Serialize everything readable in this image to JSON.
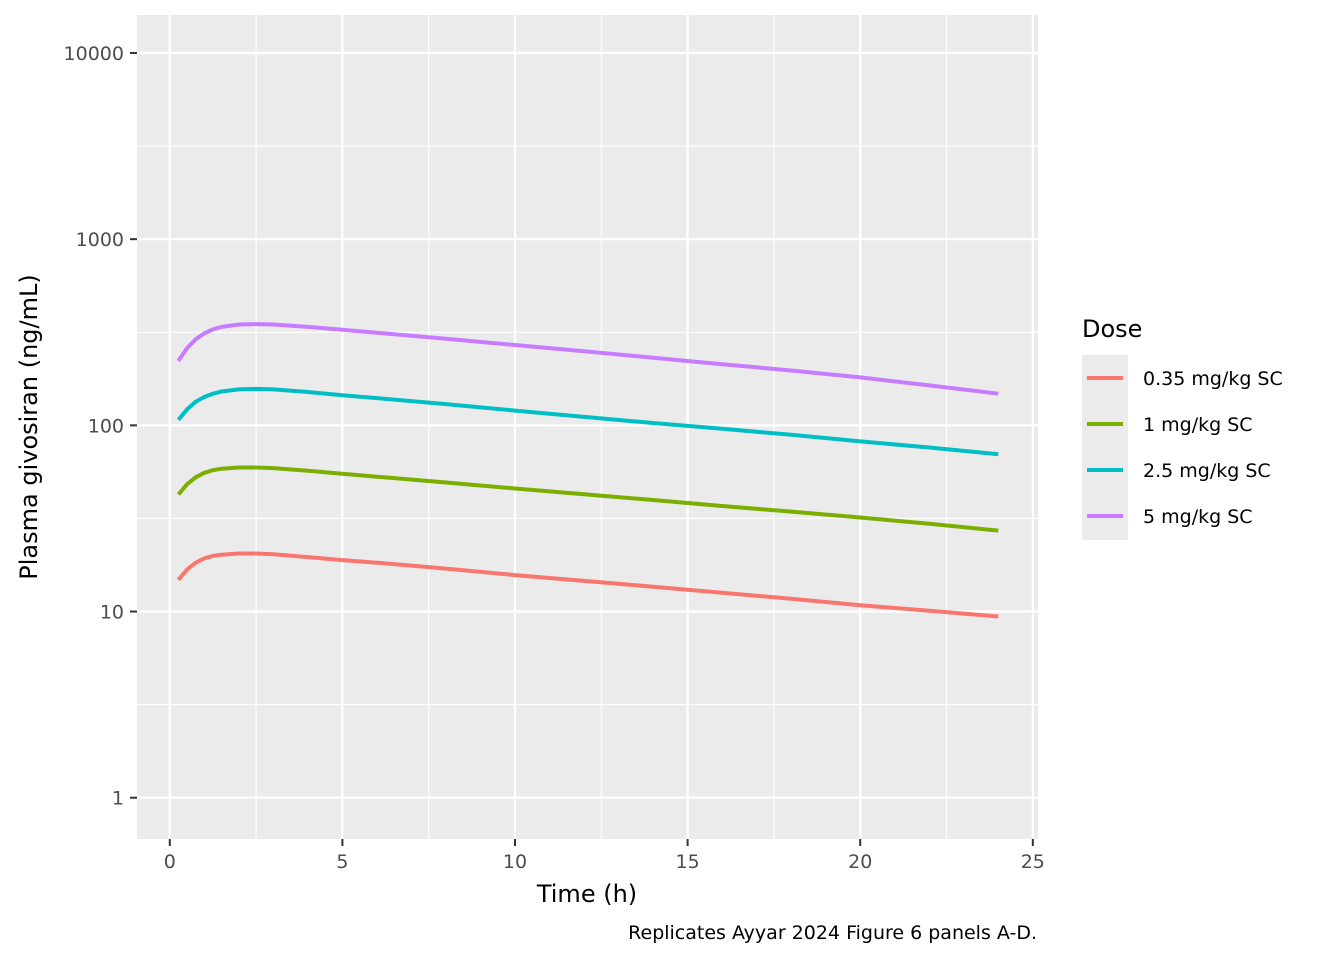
{
  "chart_data": {
    "type": "line",
    "title": "",
    "xlabel": "Time (h)",
    "ylabel": "Plasma givosiran (ng/mL)",
    "caption": "Replicates Ayyar 2024 Figure 6 panels A-D.",
    "x_scale": "linear",
    "y_scale": "log10",
    "xlim": [
      -0.95,
      25.15
    ],
    "ylim": [
      0.6,
      16000
    ],
    "x_ticks": [
      0,
      5,
      10,
      15,
      20,
      25
    ],
    "x_tick_labels": [
      "0",
      "5",
      "10",
      "15",
      "20",
      "25"
    ],
    "y_ticks": [
      1,
      10,
      100,
      1000,
      10000
    ],
    "y_tick_labels": [
      "1",
      "10",
      "100",
      "1000",
      "10000"
    ],
    "grid": true,
    "legend": {
      "title": "Dose",
      "placement": "right"
    },
    "x": [
      0.25,
      0.5,
      0.75,
      1,
      1.25,
      1.5,
      2,
      2.5,
      3,
      4,
      5,
      6,
      8,
      10,
      12,
      14,
      16,
      18,
      20,
      22,
      24
    ],
    "series": [
      {
        "name": "0.35 mg/kg SC",
        "color": "#F8766D",
        "values": [
          14.8,
          16.8,
          18.3,
          19.3,
          19.9,
          20.2,
          20.5,
          20.5,
          20.3,
          19.6,
          18.9,
          18.3,
          17.0,
          15.7,
          14.6,
          13.6,
          12.6,
          11.7,
          10.8,
          10.1,
          9.4
        ]
      },
      {
        "name": "1 mg/kg SC",
        "color": "#7CAE00",
        "values": [
          42.5,
          48.3,
          52.6,
          55.6,
          57.4,
          58.5,
          59.4,
          59.4,
          58.9,
          57.1,
          55.0,
          53.0,
          49.3,
          45.8,
          42.6,
          39.7,
          36.9,
          34.4,
          32.0,
          29.6,
          27.2
        ]
      },
      {
        "name": "2.5 mg/kg SC",
        "color": "#00BFC4",
        "values": [
          107,
          122,
          134,
          142,
          148,
          152,
          156,
          157,
          156,
          151,
          145,
          140,
          130,
          120,
          111,
          103,
          96,
          89,
          82,
          76,
          70
        ]
      },
      {
        "name": "5 mg/kg SC",
        "color": "#C77CFF",
        "values": [
          222,
          260,
          290,
          312,
          328,
          338,
          348,
          350,
          348,
          338,
          326,
          314,
          292,
          270,
          250,
          231,
          213,
          197,
          181,
          164,
          148
        ]
      }
    ]
  }
}
